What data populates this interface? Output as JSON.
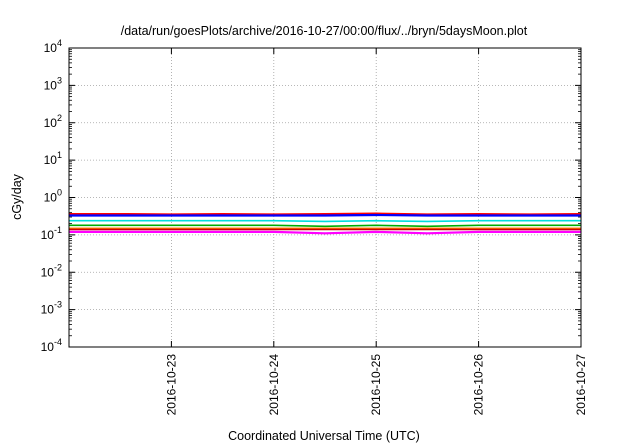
{
  "chart_data": {
    "type": "line",
    "title": "/data/run/goesPlots/archive/2016-10-27/00:00/flux/../bryn/5daysMoon.plot",
    "xlabel": "Coordinated Universal Time (UTC)",
    "ylabel": "cGy/day",
    "yscale": "log",
    "ylim": [
      0.0001,
      10000
    ],
    "xlim": [
      "2016-10-22 00:00",
      "2016-10-27 00:00"
    ],
    "grid": true,
    "x_ticks": [
      "2016-10-23",
      "2016-10-24",
      "2016-10-25",
      "2016-10-26",
      "2016-10-27"
    ],
    "y_ticks": [
      {
        "base": "10",
        "exp": "-4",
        "value": 0.0001
      },
      {
        "base": "10",
        "exp": "-3",
        "value": 0.001
      },
      {
        "base": "10",
        "exp": "-2",
        "value": 0.01
      },
      {
        "base": "10",
        "exp": "-1",
        "value": 0.1
      },
      {
        "base": "10",
        "exp": "0",
        "value": 1
      },
      {
        "base": "10",
        "exp": "1",
        "value": 10
      },
      {
        "base": "10",
        "exp": "2",
        "value": 100
      },
      {
        "base": "10",
        "exp": "3",
        "value": 1000
      },
      {
        "base": "10",
        "exp": "4",
        "value": 10000
      }
    ],
    "x": [
      "2016-10-22 00:00",
      "2016-10-22 12:00",
      "2016-10-23 00:00",
      "2016-10-23 12:00",
      "2016-10-24 00:00",
      "2016-10-24 12:00",
      "2016-10-25 00:00",
      "2016-10-25 12:00",
      "2016-10-26 00:00",
      "2016-10-26 12:00",
      "2016-10-27 00:00"
    ],
    "series": [
      {
        "color": "#ff00ff",
        "values": [
          0.12,
          0.12,
          0.12,
          0.12,
          0.12,
          0.11,
          0.12,
          0.11,
          0.12,
          0.12,
          0.12
        ]
      },
      {
        "color": "#ff0000",
        "values": [
          0.36,
          0.36,
          0.35,
          0.36,
          0.35,
          0.36,
          0.37,
          0.35,
          0.36,
          0.35,
          0.36
        ]
      },
      {
        "color": "#0000ff",
        "values": [
          0.33,
          0.33,
          0.33,
          0.33,
          0.33,
          0.33,
          0.34,
          0.33,
          0.33,
          0.33,
          0.33
        ]
      },
      {
        "color": "#00dddd",
        "values": [
          0.24,
          0.24,
          0.24,
          0.24,
          0.24,
          0.23,
          0.24,
          0.23,
          0.24,
          0.24,
          0.24
        ]
      },
      {
        "color": "#00aa00",
        "values": [
          0.18,
          0.18,
          0.18,
          0.18,
          0.18,
          0.17,
          0.18,
          0.17,
          0.18,
          0.18,
          0.18
        ]
      },
      {
        "color": "#ff8800",
        "values": [
          0.15,
          0.15,
          0.15,
          0.15,
          0.15,
          0.15,
          0.15,
          0.15,
          0.15,
          0.15,
          0.15
        ]
      },
      {
        "color": "#cc0000",
        "values": [
          0.14,
          0.14,
          0.14,
          0.14,
          0.14,
          0.14,
          0.14,
          0.14,
          0.14,
          0.14,
          0.14
        ]
      }
    ]
  }
}
